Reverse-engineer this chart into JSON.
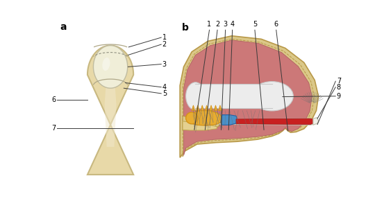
{
  "fig_width": 5.53,
  "fig_height": 2.9,
  "dpi": 100,
  "bg_color": "#ffffff",
  "finger_skin_color": "#e8d9a8",
  "finger_skin_edge": "#c8b880",
  "nail_color": "#e8e6d8",
  "nail_edge": "#c0bca8",
  "lunula_fill": "#f0eed8",
  "matrix_orange": "#d4941a",
  "matrix_light": "#e8ac30",
  "blue_color": "#4a90c8",
  "red_color": "#c82020",
  "bone_color": "#ececec",
  "bone_edge": "#c8c8c8",
  "flesh_color": "#cc7878",
  "flesh_edge": "#b06060",
  "tan_skin": "#dbc888",
  "tan_skin_edge": "#b89848",
  "line_color": "#3a3a3a",
  "text_color": "#000000",
  "ann_fs": 7.0,
  "label_fs": 10
}
